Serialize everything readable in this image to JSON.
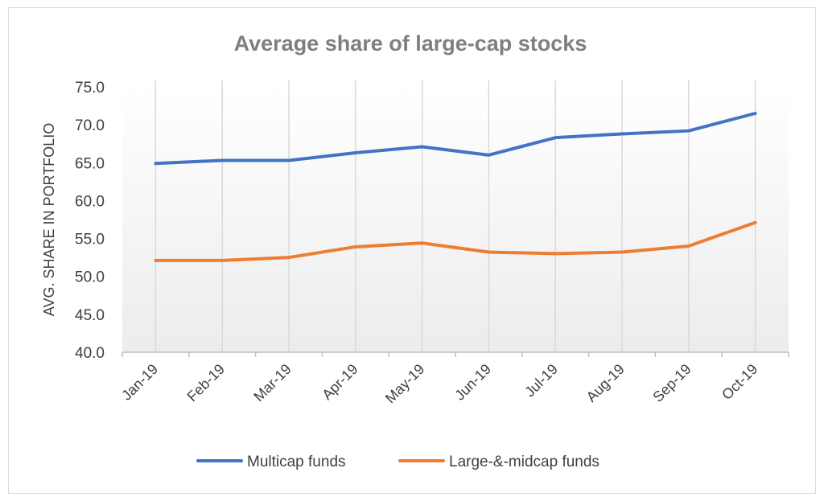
{
  "chart_data": {
    "type": "line",
    "title": "Average share of large-cap stocks",
    "xlabel": "",
    "ylabel": "AVG. SHARE IN PORTFOLIO",
    "ylim": [
      40,
      75
    ],
    "y_ticks": [
      "40.0",
      "45.0",
      "50.0",
      "55.0",
      "60.0",
      "65.0",
      "70.0",
      "75.0"
    ],
    "categories": [
      "Jan-19",
      "Feb-19",
      "Mar-19",
      "Apr-19",
      "May-19",
      "Jun-19",
      "Jul-19",
      "Aug-19",
      "Sep-19",
      "Oct-19"
    ],
    "series": [
      {
        "name": "Multicap funds",
        "color": "#4472c4",
        "values": [
          64.9,
          65.3,
          65.3,
          66.3,
          67.1,
          66.0,
          68.3,
          68.8,
          69.2,
          71.5
        ]
      },
      {
        "name": "Large-&-midcap funds",
        "color": "#ed7d31",
        "values": [
          52.1,
          52.1,
          52.5,
          53.9,
          54.4,
          53.2,
          53.0,
          53.2,
          54.0,
          57.1
        ]
      }
    ],
    "grid": "vertical",
    "legend": "bottom"
  }
}
